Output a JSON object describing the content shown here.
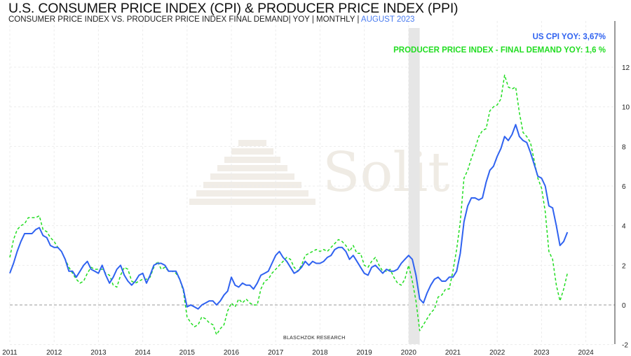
{
  "header": {
    "title": "U.S. CONSUMER PRICE INDEX (CPI) & PRODUCER PRICE INDEX (PPI)",
    "subtitle": "CONSUMER PRICE INDEX VS. PRODUCER PRICE INDEX FINAL DEMAND| YOY | MONTHLY | ",
    "subtitle_date": "AUGUST 2023"
  },
  "legend": {
    "cpi": "US CPI YOY: 3,67%",
    "ppi": "PRODUCER PRICE INDEX - FINAL DEMAND YOY: 1,6 %"
  },
  "watermark": "Solit",
  "credit": "BLASCHZOK    RESEARCH",
  "colors": {
    "cpi": "#2f62f0",
    "ppi": "#22dd22",
    "recession": "#e6e6e6",
    "zero_line": "#999999"
  },
  "chart_data": {
    "type": "line",
    "title": "U.S. CONSUMER PRICE INDEX (CPI) & PRODUCER PRICE INDEX (PPI)",
    "xlabel": "",
    "ylabel": "",
    "start": "2011-01",
    "frequency": "monthly",
    "x_ticks": [
      "2011",
      "2012",
      "2013",
      "2014",
      "2015",
      "2016",
      "2017",
      "2018",
      "2019",
      "2020",
      "2021",
      "2022",
      "2023",
      "2024"
    ],
    "y_ticks": [
      12,
      10,
      8,
      6,
      4,
      2,
      0,
      -2
    ],
    "ylim": [
      -2,
      13.5
    ],
    "grid": true,
    "legend_position": "top-right",
    "recession": [
      "2020-02",
      "2020-04"
    ],
    "series": [
      {
        "name": "US CPI YOY",
        "style": "solid",
        "values": [
          1.6,
          2.1,
          2.7,
          3.2,
          3.6,
          3.6,
          3.6,
          3.8,
          3.9,
          3.5,
          3.4,
          3.0,
          2.9,
          2.9,
          2.7,
          2.3,
          1.7,
          1.7,
          1.4,
          1.7,
          2.0,
          2.2,
          1.8,
          1.7,
          1.6,
          2.0,
          1.5,
          1.1,
          1.4,
          1.8,
          2.0,
          1.5,
          1.2,
          1.0,
          1.2,
          1.5,
          1.6,
          1.1,
          1.5,
          2.0,
          2.1,
          2.1,
          2.0,
          1.7,
          1.7,
          1.7,
          1.3,
          0.8,
          -0.1,
          0.0,
          -0.1,
          -0.2,
          0.0,
          0.1,
          0.2,
          0.2,
          0.0,
          0.2,
          0.5,
          0.7,
          1.4,
          1.0,
          0.9,
          1.1,
          1.0,
          1.0,
          0.8,
          1.1,
          1.5,
          1.6,
          1.7,
          2.1,
          2.5,
          2.7,
          2.4,
          2.2,
          1.9,
          1.6,
          1.7,
          1.9,
          2.2,
          2.0,
          2.2,
          2.1,
          2.1,
          2.2,
          2.4,
          2.5,
          2.8,
          2.9,
          2.9,
          2.7,
          2.3,
          2.5,
          2.2,
          1.9,
          1.6,
          1.5,
          1.9,
          2.0,
          1.8,
          1.6,
          1.8,
          1.7,
          1.7,
          1.8,
          2.1,
          2.3,
          2.5,
          2.3,
          1.5,
          0.3,
          0.1,
          0.6,
          1.0,
          1.3,
          1.4,
          1.2,
          1.2,
          1.4,
          1.4,
          1.7,
          2.6,
          4.2,
          5.0,
          5.4,
          5.4,
          5.3,
          5.4,
          6.2,
          6.8,
          7.0,
          7.5,
          7.9,
          8.5,
          8.3,
          8.6,
          9.1,
          8.5,
          8.3,
          8.2,
          7.7,
          7.1,
          6.5,
          6.4,
          6.0,
          5.0,
          4.9,
          4.0,
          3.0,
          3.2,
          3.67
        ]
      },
      {
        "name": "PRODUCER PRICE INDEX - FINAL DEMAND YOY",
        "style": "dashed",
        "values": [
          2.4,
          3.3,
          3.8,
          4.0,
          4.1,
          4.4,
          4.4,
          4.4,
          4.5,
          3.8,
          3.7,
          3.4,
          3.2,
          2.9,
          2.7,
          2.3,
          1.9,
          1.6,
          1.3,
          1.1,
          1.2,
          1.6,
          1.9,
          1.8,
          1.8,
          1.8,
          1.6,
          1.5,
          1.0,
          0.9,
          1.5,
          1.9,
          1.8,
          1.2,
          1.1,
          1.2,
          1.3,
          1.3,
          1.4,
          1.9,
          2.2,
          1.8,
          1.9,
          1.7,
          1.7,
          1.6,
          1.3,
          0.7,
          -0.6,
          -0.9,
          -1.1,
          -1.0,
          -0.6,
          -0.7,
          -0.9,
          -1.0,
          -1.5,
          -1.2,
          -1.0,
          -0.3,
          0.1,
          -0.1,
          0.3,
          0.1,
          0.3,
          0.1,
          0.0,
          0.0,
          0.8,
          1.2,
          1.3,
          1.6,
          1.8,
          2.0,
          2.2,
          2.4,
          2.3,
          1.9,
          1.7,
          2.0,
          2.5,
          2.6,
          2.7,
          2.8,
          2.7,
          2.8,
          2.7,
          2.9,
          3.1,
          3.3,
          3.2,
          3.0,
          2.7,
          3.0,
          2.6,
          2.6,
          2.0,
          1.9,
          2.2,
          2.4,
          2.0,
          1.7,
          1.7,
          1.8,
          1.4,
          1.1,
          1.0,
          1.3,
          2.0,
          1.2,
          0.2,
          -1.3,
          -1.0,
          -0.7,
          -0.4,
          -0.2,
          0.4,
          0.5,
          0.8,
          0.8,
          1.7,
          2.8,
          4.2,
          6.4,
          6.8,
          7.4,
          7.9,
          8.5,
          8.8,
          8.9,
          9.8,
          10.0,
          10.1,
          10.4,
          11.6,
          11.0,
          10.9,
          11.0,
          9.7,
          8.7,
          8.5,
          8.2,
          7.3,
          6.4,
          5.9,
          4.7,
          2.7,
          2.3,
          1.0,
          0.2,
          0.8,
          1.6
        ]
      }
    ]
  }
}
